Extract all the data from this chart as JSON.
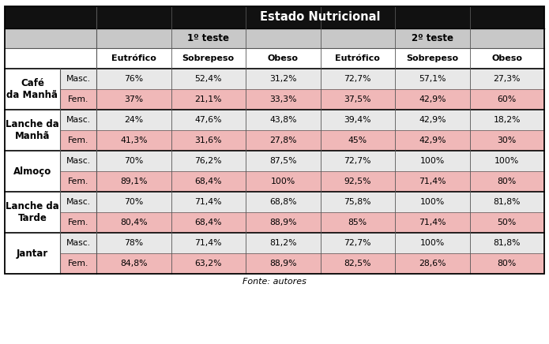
{
  "title": "Estado Nutricional",
  "test1_label": "1º teste",
  "test2_label": "2º teste",
  "col_headers": [
    "Eutrófico",
    "Sobrepeso",
    "Obeso",
    "Eutrófico",
    "Sobrepeso",
    "Obeso"
  ],
  "row_groups": [
    {
      "label": "Café\nda Manhã",
      "rows": [
        {
          "gender": "Masc.",
          "values": [
            "76%",
            "52,4%",
            "31,2%",
            "72,7%",
            "57,1%",
            "27,3%"
          ]
        },
        {
          "gender": "Fem.",
          "values": [
            "37%",
            "21,1%",
            "33,3%",
            "37,5%",
            "42,9%",
            "60%"
          ]
        }
      ]
    },
    {
      "label": "Lanche da\nManhã",
      "rows": [
        {
          "gender": "Masc.",
          "values": [
            "24%",
            "47,6%",
            "43,8%",
            "39,4%",
            "42,9%",
            "18,2%"
          ]
        },
        {
          "gender": "Fem.",
          "values": [
            "41,3%",
            "31,6%",
            "27,8%",
            "45%",
            "42,9%",
            "30%"
          ]
        }
      ]
    },
    {
      "label": "Almoço",
      "rows": [
        {
          "gender": "Masc.",
          "values": [
            "70%",
            "76,2%",
            "87,5%",
            "72,7%",
            "100%",
            "100%"
          ]
        },
        {
          "gender": "Fem.",
          "values": [
            "89,1%",
            "68,4%",
            "100%",
            "92,5%",
            "71,4%",
            "80%"
          ]
        }
      ]
    },
    {
      "label": "Lanche da\nTarde",
      "rows": [
        {
          "gender": "Masc.",
          "values": [
            "70%",
            "71,4%",
            "68,8%",
            "75,8%",
            "100%",
            "81,8%"
          ]
        },
        {
          "gender": "Fem.",
          "values": [
            "80,4%",
            "68,4%",
            "88,9%",
            "85%",
            "71,4%",
            "50%"
          ]
        }
      ]
    },
    {
      "label": "Jantar",
      "rows": [
        {
          "gender": "Masc.",
          "values": [
            "78%",
            "71,4%",
            "81,2%",
            "72,7%",
            "100%",
            "81,8%"
          ]
        },
        {
          "gender": "Fem.",
          "values": [
            "84,8%",
            "63,2%",
            "88,9%",
            "82,5%",
            "28,6%",
            "80%"
          ]
        }
      ]
    }
  ],
  "footer": "Fonte: autores",
  "header_bg": "#111111",
  "header_text_color": "#ffffff",
  "subheader_bg": "#c8c8c8",
  "col_header_bg": "#ffffff",
  "row_masc_bg": "#e8e8e8",
  "row_fem_bg": "#f0b8b8",
  "group_label_bg": "#ffffff",
  "border_color": "#555555",
  "border_color_thick": "#000000",
  "font_size_title": 10.5,
  "font_size_subheader": 8.5,
  "font_size_colheader": 8.0,
  "font_size_cell": 7.8,
  "font_size_footer": 8.0
}
